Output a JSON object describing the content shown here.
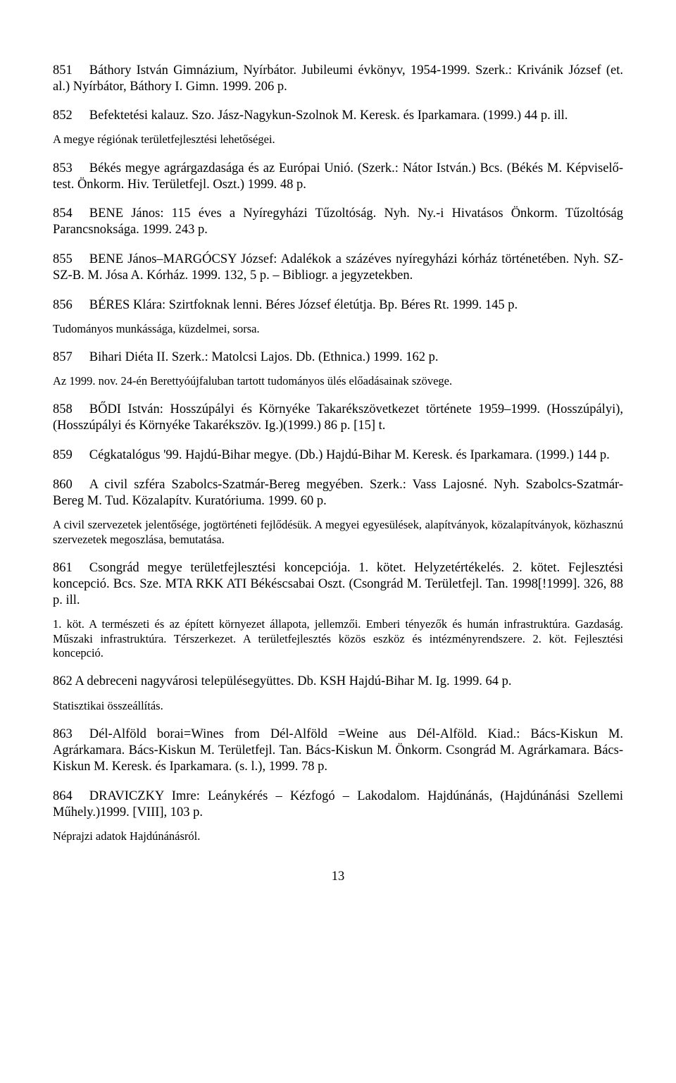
{
  "typography": {
    "body_font": "Times New Roman",
    "body_fontsize_pt": 14,
    "note_fontsize_pt": 12.5,
    "text_color": "#000000",
    "background_color": "#ffffff"
  },
  "entries": [
    {
      "num": "851",
      "text": "Báthory István Gimnázium, Nyírbátor. Jubileumi évkönyv, 1954-1999. Szerk.: Krivánik József (et. al.) Nyírbátor, Báthory I. Gimn. 1999. 206 p."
    },
    {
      "num": "852",
      "text": "Befektetési kalauz. Szo. Jász-Nagykun-Szolnok M. Keresk. és Iparkamara. (1999.) 44 p. ill.",
      "note": "A megye régiónak területfejlesztési lehetőségei."
    },
    {
      "num": "853",
      "text": "Békés megye agrárgazdasága és az Európai Unió. (Szerk.: Nátor István.) Bcs. (Békés M. Képviselő-test. Önkorm. Hiv. Területfejl. Oszt.) 1999. 48 p."
    },
    {
      "num": "854",
      "text": "BENE János: 115 éves a Nyíregyházi Tűzoltóság. Nyh. Ny.-i Hivatásos Önkorm. Tűzoltóság Parancsnoksága. 1999. 243 p."
    },
    {
      "num": "855",
      "text": "BENE János–MARGÓCSY József: Adalékok a százéves nyíregyházi kórház történetében. Nyh. SZ-SZ-B. M. Jósa A. Kórház. 1999. 132, 5 p. – Bibliogr. a jegyzetekben."
    },
    {
      "num": "856",
      "text": "BÉRES Klára: Szirtfoknak lenni. Béres József életútja. Bp. Béres Rt. 1999. 145 p.",
      "note": "Tudományos munkássága, küzdelmei, sorsa."
    },
    {
      "num": "857",
      "text": "Bihari Diéta II. Szerk.: Matolcsi Lajos. Db. (Ethnica.) 1999. 162 p.",
      "note": "Az 1999. nov. 24-én Berettyóújfaluban tartott tudományos ülés előadásainak szövege."
    },
    {
      "num": "858",
      "text": "BŐDI István: Hosszúpályi és Környéke Takarékszövetkezet története 1959–1999. (Hosszúpályi), (Hosszúpályi és Környéke Takarékszöv. Ig.)(1999.) 86 p. [15] t."
    },
    {
      "num": "859",
      "text": "Cégkatalógus '99. Hajdú-Bihar megye. (Db.) Hajdú-Bihar M. Keresk. és Iparkamara. (1999.) 144 p."
    },
    {
      "num": "860",
      "text": "A civil szféra Szabolcs-Szatmár-Bereg megyében. Szerk.: Vass Lajosné. Nyh. Szabolcs-Szatmár-Bereg M. Tud. Közalapítv. Kuratóriuma. 1999. 60 p.",
      "note": "A civil szervezetek jelentősége, jogtörténeti fejlődésük. A megyei egyesülések, alapítványok, közalapítványok, közhasznú szervezetek megoszlása, bemutatása."
    },
    {
      "num": "861",
      "text": "Csongrád megye területfejlesztési koncepciója. 1. kötet. Helyzetértékelés. 2. kötet. Fejlesztési koncepció. Bcs. Sze. MTA RKK ATI Békéscsabai Oszt. (Csongrád M. Területfejl. Tan. 1998[!1999]. 326, 88 p. ill.",
      "note": "1. köt. A természeti és az épített környezet állapota, jellemzői. Emberi tényezők és humán infrastruktúra. Gazdaság. Műszaki infrastruktúra. Térszerkezet. A területfejlesztés közös eszköz és intézményrendszere. 2. köt. Fejlesztési koncepció."
    },
    {
      "num": "862",
      "text": "A debreceni nagyvárosi településegyüttes. Db. KSH Hajdú-Bihar M. Ig. 1999. 64 p.",
      "note": "Statisztikai összeállítás.",
      "nogap": true
    },
    {
      "num": "863",
      "text": "Dél-Alföld borai=Wines from Dél-Alföld =Weine aus Dél-Alföld. Kiad.: Bács-Kiskun M. Agrárkamara. Bács-Kiskun M. Területfejl. Tan. Bács-Kiskun M. Önkorm. Csongrád M. Agrárkamara. Bács-Kiskun M. Keresk. és Iparkamara. (s. l.), 1999. 78 p."
    },
    {
      "num": "864",
      "text": "DRAVICZKY Imre: Leánykérés – Kézfogó – Lakodalom. Hajdúnánás, (Hajdúnánási Szellemi Műhely.)1999. [VIII], 103 p.",
      "note": "Néprajzi adatok Hajdúnánásról."
    }
  ],
  "page_number": "13"
}
